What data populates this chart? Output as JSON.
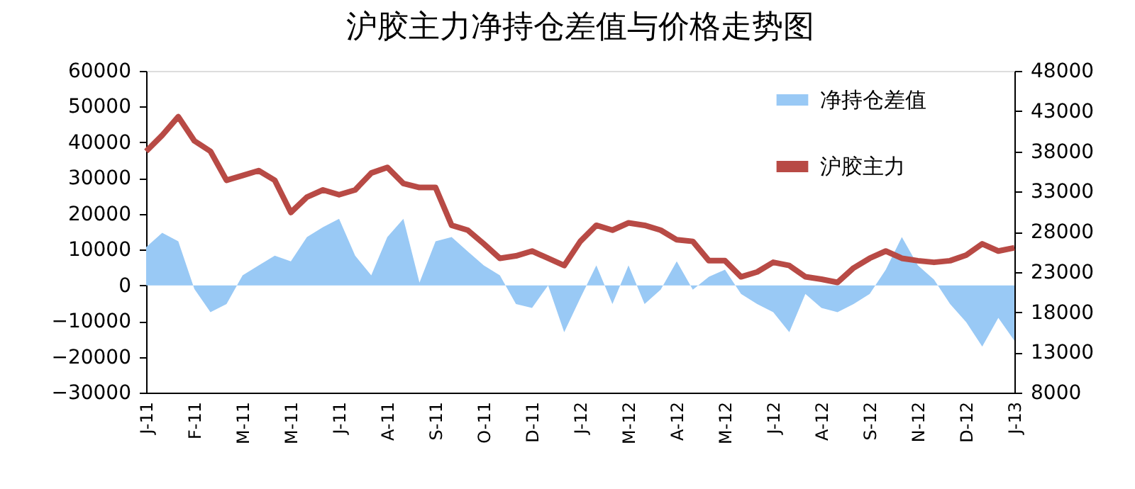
{
  "chart_data": {
    "type": "line",
    "title": "沪胶主力净持仓差值与价格走势图",
    "categories": [
      "J-11",
      null,
      null,
      "F-11",
      null,
      null,
      "M-11",
      null,
      null,
      "M-11",
      null,
      null,
      "J-11",
      null,
      null,
      "A-11",
      null,
      null,
      "S-11",
      null,
      null,
      "O-11",
      null,
      null,
      "D-11",
      null,
      null,
      "J-12",
      null,
      null,
      "M-12",
      null,
      null,
      "A-12",
      null,
      null,
      "M-12",
      null,
      null,
      "J-12",
      null,
      null,
      "A-12",
      null,
      null,
      "S-12",
      null,
      null,
      "N-12",
      null,
      null,
      "D-12",
      null,
      null,
      "J-13"
    ],
    "series": [
      {
        "name": "净持仓差值",
        "type": "area",
        "color": "#99c9f5",
        "values": [
          10700,
          14700,
          12300,
          -1000,
          -7500,
          -5200,
          2800,
          5600,
          8300,
          6700,
          13500,
          16300,
          18600,
          8300,
          2800,
          13500,
          18600,
          800,
          12300,
          13500,
          9500,
          5600,
          2800,
          -5200,
          -6300,
          0,
          -13100,
          -3600,
          5600,
          -5200,
          5600,
          -5200,
          -1200,
          6700,
          -1200,
          2400,
          4400,
          -2400,
          -5200,
          -7500,
          -13100,
          -2400,
          -6300,
          -7500,
          -5200,
          -2400,
          4400,
          13500,
          5600,
          1600,
          -5200,
          -10300,
          -17100,
          -9100,
          -15500
        ]
      },
      {
        "name": "沪胶主力",
        "axis": "y2",
        "color": "#b84a45",
        "values": [
          38000,
          40000,
          42300,
          39300,
          38000,
          34400,
          35000,
          35600,
          34400,
          30400,
          32300,
          33200,
          32600,
          33200,
          35300,
          36000,
          34000,
          33500,
          33500,
          28800,
          28200,
          26500,
          24700,
          25000,
          25600,
          24700,
          23800,
          26800,
          28800,
          28200,
          29100,
          28800,
          28200,
          27000,
          26800,
          24400,
          24400,
          22400,
          23000,
          24200,
          23800,
          22400,
          22100,
          21700,
          23500,
          24700,
          25600,
          24700,
          24400,
          24200,
          24400,
          25100,
          26500,
          25600,
          26000
        ]
      }
    ],
    "ylim": [
      -30000,
      60000
    ],
    "yticks": [
      -30000,
      -20000,
      -10000,
      0,
      10000,
      20000,
      30000,
      40000,
      50000,
      60000
    ],
    "y2lim": [
      8000,
      48000
    ],
    "y2ticks": [
      8000,
      13000,
      18000,
      23000,
      28000,
      33000,
      38000,
      43000,
      48000
    ],
    "legend": "top right",
    "grid": false
  }
}
